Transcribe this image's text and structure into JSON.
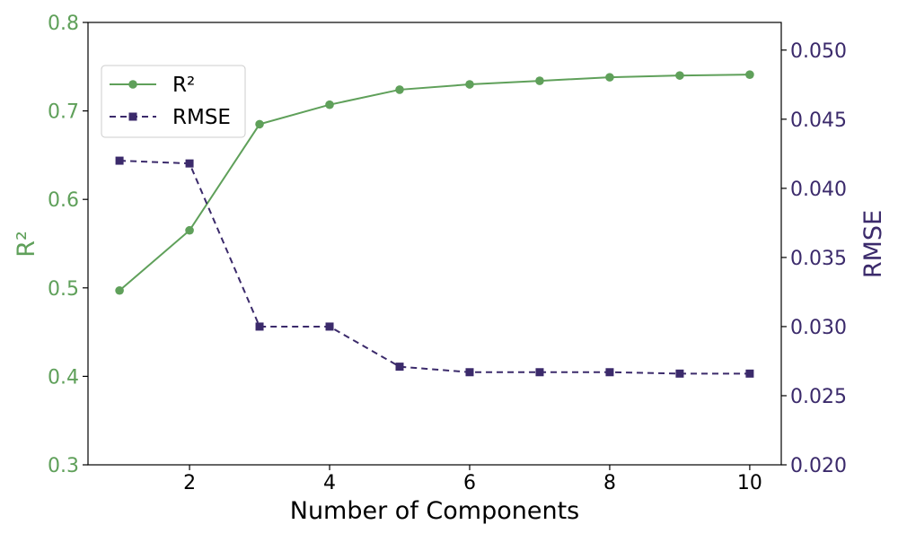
{
  "colors": {
    "r2": "#5fa05a",
    "rmse": "#3b2a6b",
    "axis": "#000000",
    "background": "#ffffff"
  },
  "chart_data": {
    "type": "line",
    "title": "",
    "xlabel": "Number of Components",
    "ylabel_left": "R²",
    "ylabel_right": "RMSE",
    "xlim": [
      0.55,
      10.45
    ],
    "ylim_left": [
      0.3,
      0.8
    ],
    "ylim_right": [
      0.02,
      0.052
    ],
    "x_ticks": [
      2,
      4,
      6,
      8,
      10
    ],
    "left_ticks": [
      0.3,
      0.4,
      0.5,
      0.6,
      0.7,
      0.8
    ],
    "right_ticks": [
      0.02,
      0.025,
      0.03,
      0.035,
      0.04,
      0.045,
      0.05
    ],
    "x_tick_labels": [
      "2",
      "4",
      "6",
      "8",
      "10"
    ],
    "left_tick_labels": [
      "0.3",
      "0.4",
      "0.5",
      "0.6",
      "0.7",
      "0.8"
    ],
    "right_tick_labels": [
      "0.020",
      "0.025",
      "0.030",
      "0.035",
      "0.040",
      "0.045",
      "0.050"
    ],
    "grid": false,
    "legend_position": "upper-left",
    "x": [
      1,
      2,
      3,
      4,
      5,
      6,
      7,
      8,
      9,
      10
    ],
    "series": [
      {
        "name": "R²",
        "axis": "left",
        "marker": "circle",
        "line_style": "solid",
        "color": "#5fa05a",
        "values": [
          0.497,
          0.565,
          0.685,
          0.707,
          0.724,
          0.73,
          0.734,
          0.738,
          0.74,
          0.741
        ]
      },
      {
        "name": "RMSE",
        "axis": "right",
        "marker": "square",
        "line_style": "dashed",
        "color": "#3b2a6b",
        "values": [
          0.042,
          0.0418,
          0.03,
          0.03,
          0.0271,
          0.0267,
          0.0267,
          0.0267,
          0.0266,
          0.0266
        ]
      }
    ]
  }
}
